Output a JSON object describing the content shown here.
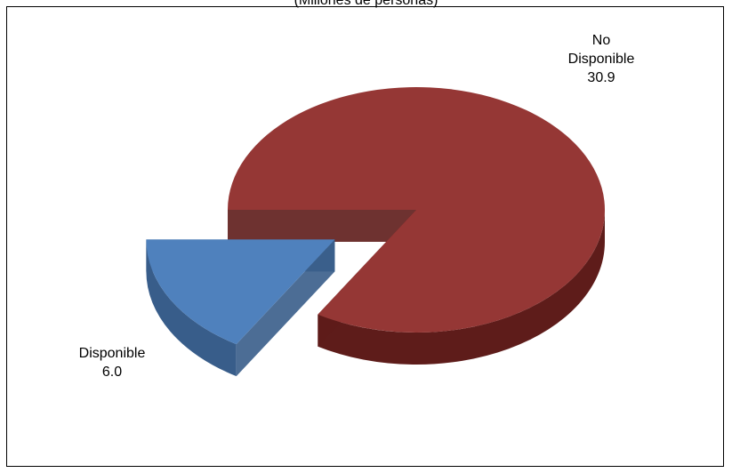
{
  "chart_data": {
    "type": "pie",
    "subtitle": "(Millones de personas)",
    "slices": [
      {
        "label_lines": [
          "No",
          "Disponible"
        ],
        "value": 30.9,
        "value_label": "30.9",
        "color": "#953735",
        "side_color": "#5e1c1a",
        "exploded": false
      },
      {
        "label_lines": [
          "Disponible"
        ],
        "value": 6.0,
        "value_label": "6.0",
        "color": "#4f81bd",
        "side_color": "#385d8a",
        "exploded": true
      }
    ]
  }
}
